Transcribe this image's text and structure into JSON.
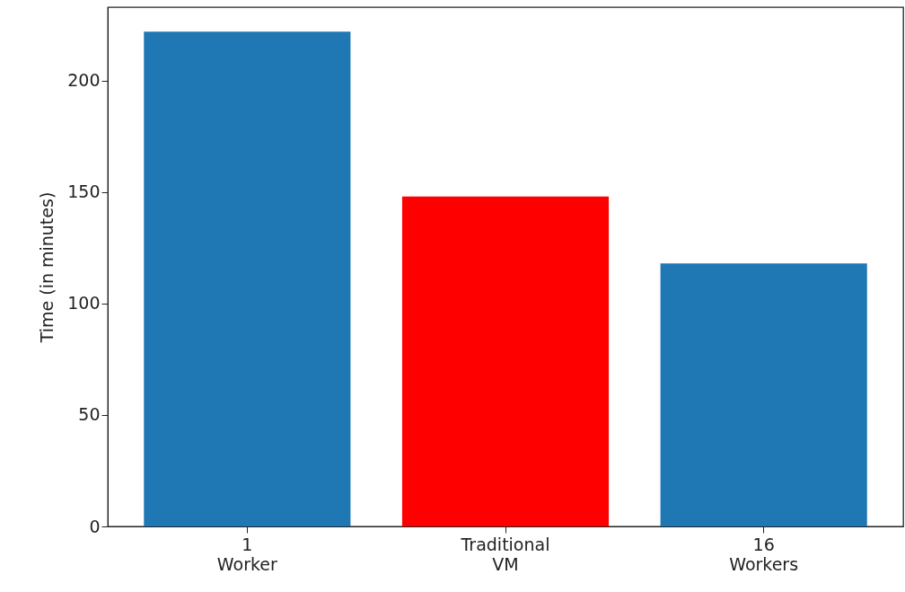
{
  "chart_data": {
    "type": "bar",
    "ylabel": "Time (in minutes)",
    "categories": [
      "1\nWorker",
      "Traditional\nVM",
      "16\nWorkers"
    ],
    "values": [
      222,
      148,
      118
    ],
    "colors": [
      "#1f77b4",
      "#ff0000",
      "#1f77b4"
    ],
    "ylim": [
      0,
      233
    ],
    "yticks": [
      0,
      50,
      100,
      150,
      200
    ],
    "grid": false
  }
}
